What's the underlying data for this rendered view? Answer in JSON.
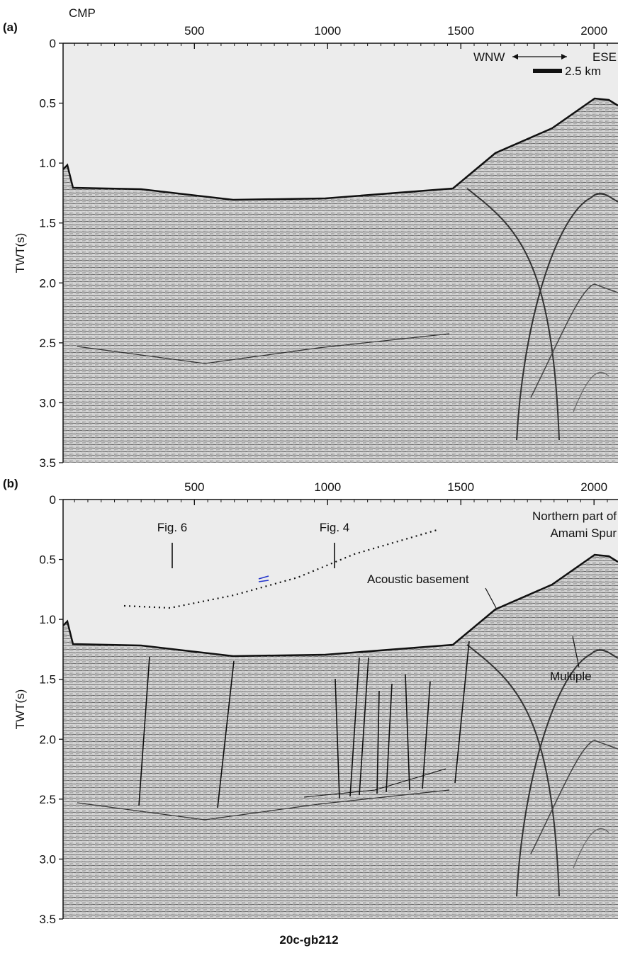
{
  "panels": [
    {
      "label": "(a)",
      "x_axis_title": "CMP",
      "xlim": [
        7,
        2090
      ],
      "xticks": [
        500,
        1000,
        1500,
        2000
      ],
      "y_axis_title": "TWT(s)",
      "ylim": [
        0,
        3.5
      ],
      "yticks": [
        0,
        0.5,
        {
          "value": 1,
          "label": "1.0"
        },
        1.5,
        {
          "value": 2,
          "label": "2.0"
        },
        2.5,
        {
          "value": 3,
          "label": "3.0"
        },
        3.5
      ],
      "annotations": {
        "west": "WNW",
        "east": "ESE",
        "scale": "2.5 km"
      }
    },
    {
      "label": "(b)",
      "xlim": [
        7,
        2090
      ],
      "xticks": [
        500,
        1000,
        1500,
        2000
      ],
      "y_axis_title": "TWT(s)",
      "ylim": [
        0,
        3.5
      ],
      "yticks": [
        0,
        0.5,
        {
          "value": 1,
          "label": "1.0"
        },
        1.5,
        {
          "value": 2,
          "label": "2.0"
        },
        2.5,
        {
          "value": 3,
          "label": "3.0"
        },
        3.5
      ],
      "annotations": {
        "fig6": "Fig. 6",
        "fig4": "Fig. 4",
        "spur": [
          "Northern part of",
          "Amami Spur"
        ],
        "basement": "Acoustic basement",
        "multiple": "Multiple"
      }
    }
  ],
  "profile_name": "20c-gb212"
}
